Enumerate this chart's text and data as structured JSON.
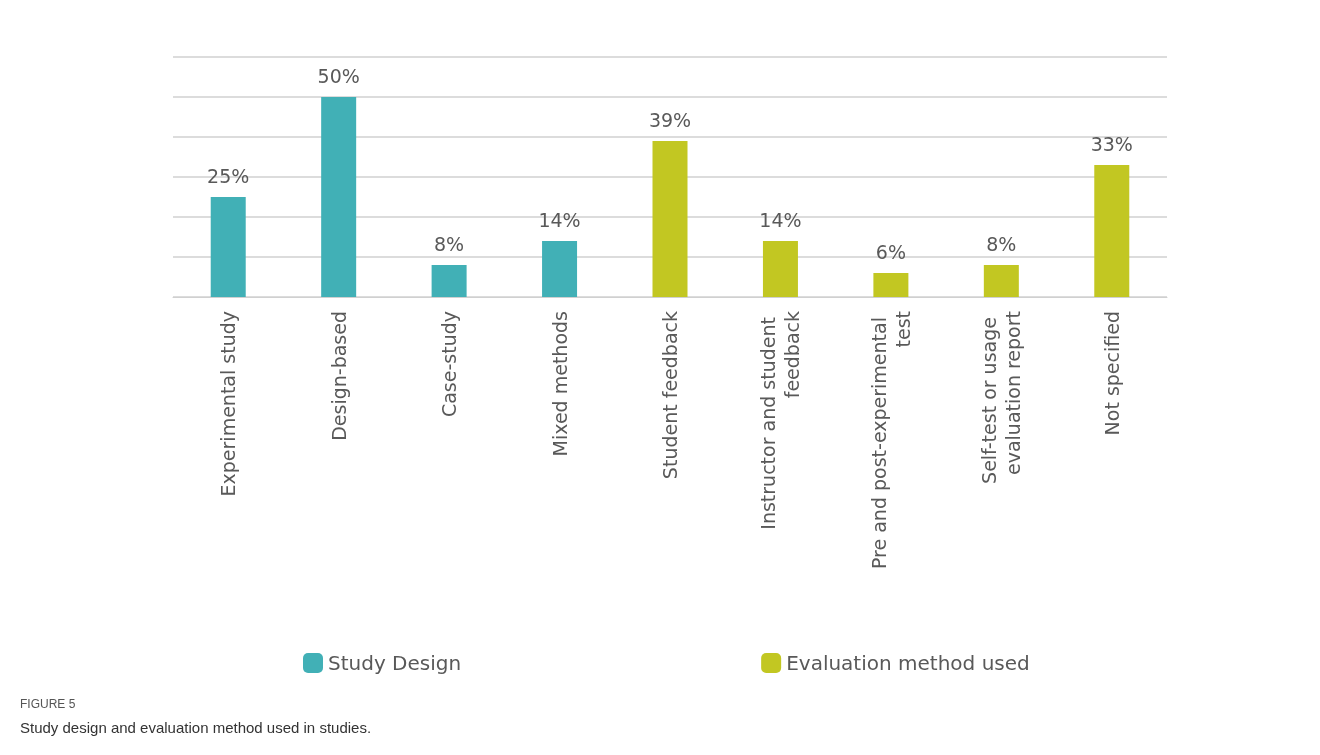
{
  "chart_data": {
    "type": "bar",
    "categories": [
      "Experimental study",
      "Design-based",
      "Case-study",
      "Mixed methods",
      "Student feedback",
      "Instructor and student feedback",
      "Pre and post-experimental test",
      "Self-test or usage evaluation report",
      "Not specified"
    ],
    "series": [
      {
        "name": "Study Design",
        "color": "#41b0b6",
        "values": [
          25,
          50,
          8,
          14,
          null,
          null,
          null,
          null,
          null
        ],
        "value_labels": [
          "25%",
          "50%",
          "8%",
          "14%",
          null,
          null,
          null,
          null,
          null
        ]
      },
      {
        "name": "Evaluation method used",
        "color": "#c2c722",
        "values": [
          null,
          null,
          null,
          null,
          39,
          14,
          6,
          8,
          33
        ],
        "value_labels": [
          null,
          null,
          null,
          null,
          "39%",
          "14%",
          "6%",
          "8%",
          "33%"
        ]
      }
    ],
    "ylim": [
      0,
      60
    ],
    "yticks": [
      {
        "value": 0,
        "label": null
      },
      {
        "value": 10,
        "label": null
      },
      {
        "value": 20,
        "label": null
      },
      {
        "value": 30,
        "label": null
      },
      {
        "value": 40,
        "label": null
      },
      {
        "value": 50,
        "label": null
      },
      {
        "value": 60,
        "label": null
      }
    ],
    "tick_labels": "x",
    "grid": "y",
    "legend": "bottom",
    "annotations": [
      "FIGURE 5",
      "Study design and evaluation method used in studies."
    ]
  }
}
